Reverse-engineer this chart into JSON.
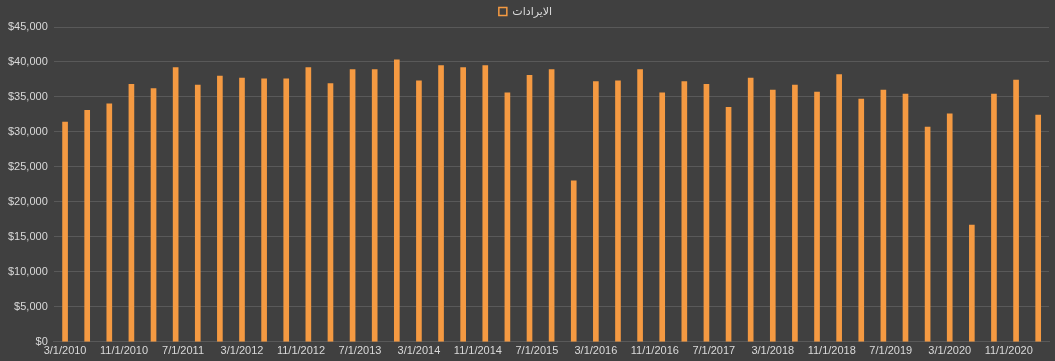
{
  "chart_data": {
    "type": "bar",
    "x": [
      "2010-03",
      "2010-06",
      "2010-09",
      "2010-12",
      "2011-03",
      "2011-06",
      "2011-09",
      "2011-12",
      "2012-03",
      "2012-06",
      "2012-09",
      "2012-12",
      "2013-03",
      "2013-06",
      "2013-09",
      "2013-12",
      "2014-03",
      "2014-06",
      "2014-09",
      "2014-12",
      "2015-03",
      "2015-06",
      "2015-09",
      "2015-12",
      "2016-03",
      "2016-06",
      "2016-09",
      "2016-12",
      "2017-03",
      "2017-06",
      "2017-09",
      "2017-12",
      "2018-03",
      "2018-06",
      "2018-09",
      "2018-12",
      "2019-03",
      "2019-06",
      "2019-09",
      "2019-12",
      "2020-03",
      "2020-06",
      "2020-09",
      "2020-12",
      "2021-03"
    ],
    "series": [
      {
        "name": "الايرادات",
        "color": "#f59a42",
        "values": [
          31400,
          33100,
          34000,
          36800,
          36200,
          39200,
          36700,
          38000,
          37700,
          37600,
          37600,
          39200,
          36900,
          38900,
          38900,
          40300,
          37300,
          39500,
          39200,
          39500,
          35600,
          38100,
          38900,
          23000,
          37200,
          37300,
          38900,
          35600,
          37200,
          36800,
          33500,
          37700,
          36000,
          36700,
          35700,
          38200,
          34700,
          36000,
          35400,
          30700,
          32600,
          16700,
          35400,
          37400,
          32400
        ]
      }
    ],
    "xlim": [
      "2010-01-15",
      "2021-04-15"
    ],
    "xticks": [
      {
        "value": "2010-03",
        "label": "3/1/2010"
      },
      {
        "value": "2010-11",
        "label": "11/1/2010"
      },
      {
        "value": "2011-07",
        "label": "7/1/2011"
      },
      {
        "value": "2012-03",
        "label": "3/1/2012"
      },
      {
        "value": "2012-11",
        "label": "11/1/2012"
      },
      {
        "value": "2013-07",
        "label": "7/1/2013"
      },
      {
        "value": "2014-03",
        "label": "3/1/2014"
      },
      {
        "value": "2014-11",
        "label": "11/1/2014"
      },
      {
        "value": "2015-07",
        "label": "7/1/2015"
      },
      {
        "value": "2016-03",
        "label": "3/1/2016"
      },
      {
        "value": "2016-11",
        "label": "11/1/2016"
      },
      {
        "value": "2017-07",
        "label": "7/1/2017"
      },
      {
        "value": "2018-03",
        "label": "3/1/2018"
      },
      {
        "value": "2018-11",
        "label": "11/1/2018"
      },
      {
        "value": "2019-07",
        "label": "7/1/2019"
      },
      {
        "value": "2020-03",
        "label": "3/1/2020"
      },
      {
        "value": "2020-11",
        "label": "11/1/2020"
      }
    ],
    "ylim": [
      0,
      45000
    ],
    "yticks": [
      {
        "value": 0,
        "label": "$0"
      },
      {
        "value": 5000,
        "label": "$5,000"
      },
      {
        "value": 10000,
        "label": "$10,000"
      },
      {
        "value": 15000,
        "label": "$15,000"
      },
      {
        "value": 20000,
        "label": "$20,000"
      },
      {
        "value": 25000,
        "label": "$25,000"
      },
      {
        "value": 30000,
        "label": "$30,000"
      },
      {
        "value": 35000,
        "label": "$35,000"
      },
      {
        "value": 40000,
        "label": "$40,000"
      },
      {
        "value": 45000,
        "label": "$45,000"
      }
    ],
    "grid": "y",
    "legend": "top"
  }
}
